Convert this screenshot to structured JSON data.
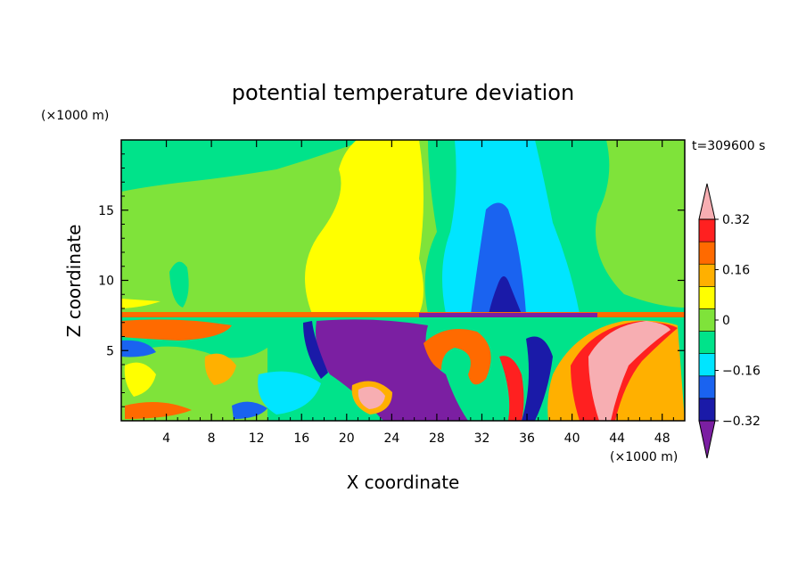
{
  "chart_data": {
    "type": "heatmap",
    "title": "potential temperature deviation",
    "xlabel": "X coordinate",
    "ylabel": "Z coordinate",
    "x_unit": "(×1000 m)",
    "y_unit": "(×1000 m)",
    "time_label": "t=309600 s",
    "xlim": [
      0,
      50
    ],
    "ylim": [
      0,
      20
    ],
    "x_ticks": [
      4,
      8,
      12,
      16,
      20,
      24,
      28,
      32,
      36,
      40,
      44,
      48
    ],
    "y_ticks": [
      5,
      10,
      15
    ],
    "colorbar": {
      "levels": [
        -0.4,
        -0.32,
        -0.24,
        -0.16,
        -0.08,
        0,
        0.08,
        0.16,
        0.24,
        0.32,
        0.4
      ],
      "tick_labels": [
        "0.32",
        "0.16",
        "0",
        "−0.16",
        "−0.32"
      ],
      "tick_values": [
        0.32,
        0.16,
        0,
        -0.16,
        -0.32
      ],
      "colors": [
        "#7b1fa2",
        "#1a1aa8",
        "#1a63f0",
        "#00e5ff",
        "#00e38a",
        "#7fe33a",
        "#ffff00",
        "#ffb000",
        "#ff6a00",
        "#ff2020",
        "#f7aeb2"
      ]
    },
    "regions": [
      {
        "value": 0.04,
        "note": "upper domain mostly near zero"
      },
      {
        "value": 0.12,
        "x": [
          19,
          26
        ],
        "z": [
          7.5,
          19.8
        ]
      },
      {
        "value": -0.12,
        "x": [
          30,
          38
        ],
        "z": [
          7.5,
          19.8
        ]
      },
      {
        "value": -0.28,
        "x": [
          32,
          36
        ],
        "z": [
          7.5,
          15.5
        ]
      },
      {
        "value": -0.36,
        "x": [
          19,
          33
        ],
        "z": [
          0,
          7
        ]
      },
      {
        "value": 0.4,
        "x": [
          40,
          48
        ],
        "z": [
          2,
          7
        ]
      },
      {
        "value": 0.4,
        "x": [
          21,
          23
        ],
        "z": [
          1,
          2.5
        ]
      }
    ]
  }
}
